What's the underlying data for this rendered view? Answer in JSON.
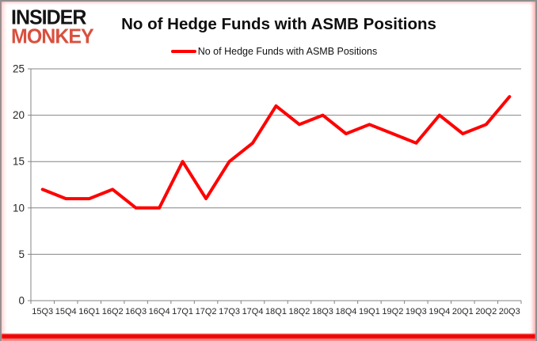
{
  "header": {
    "logo_line1": "INSIDER",
    "logo_line2": "MONKEY",
    "title": "No of Hedge Funds with ASMB Positions"
  },
  "legend": {
    "label": "No of Hedge Funds with ASMB Positions"
  },
  "chart_data": {
    "type": "line",
    "title": "No of Hedge Funds with ASMB Positions",
    "xlabel": "",
    "ylabel": "",
    "categories": [
      "15Q3",
      "15Q4",
      "16Q1",
      "16Q2",
      "16Q3",
      "16Q4",
      "17Q1",
      "17Q2",
      "17Q3",
      "17Q4",
      "18Q1",
      "18Q2",
      "18Q3",
      "18Q4",
      "19Q1",
      "19Q2",
      "19Q3",
      "19Q4",
      "20Q1",
      "20Q2",
      "20Q3"
    ],
    "series": [
      {
        "name": "No of Hedge Funds with ASMB Positions",
        "color": "#ff0000",
        "values": [
          12,
          11,
          11,
          12,
          10,
          10,
          15,
          11,
          15,
          17,
          21,
          19,
          20,
          18,
          19,
          18,
          17,
          20,
          18,
          19,
          22
        ]
      }
    ],
    "ylim": [
      0,
      25
    ],
    "yticks": [
      0,
      5,
      10,
      15,
      20,
      25
    ],
    "grid": true,
    "legend_position": "top-center"
  },
  "colors": {
    "series_red": "#ff0000",
    "logo_black": "#141414",
    "logo_red": "#d9503e",
    "grid_gray": "#848484",
    "axis_gray": "#848484",
    "tick_label": "#262626",
    "bottom_bar_red": "#ee0505"
  }
}
